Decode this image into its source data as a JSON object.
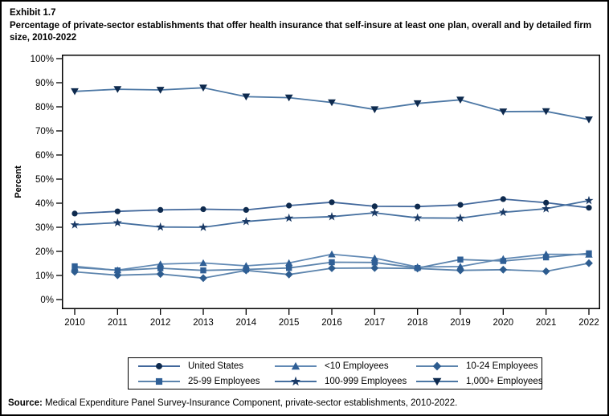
{
  "title": {
    "exhibit": "Exhibit 1.7",
    "text": "Percentage of private-sector establishments that offer health insurance that self-insure at least one plan, overall and by detailed firm size, 2010-2022"
  },
  "chart_data": {
    "type": "line",
    "title": "Percentage of private-sector establishments that offer health insurance that self-insure at least one plan, overall and by detailed firm size, 2010-2022",
    "xlabel": "",
    "ylabel": "Percent",
    "ylim": [
      0,
      100
    ],
    "yticks": [
      0,
      10,
      20,
      30,
      40,
      50,
      60,
      70,
      80,
      90,
      100
    ],
    "ytick_suffix": "%",
    "grid": false,
    "legend_position": "bottom",
    "x": [
      2010,
      2011,
      2012,
      2013,
      2014,
      2015,
      2016,
      2017,
      2018,
      2019,
      2020,
      2021,
      2022
    ],
    "series": [
      {
        "name": "United States",
        "marker": "circle",
        "marker_color": "#0e2a4e",
        "line_color": "#41679b",
        "values": [
          35.7,
          36.6,
          37.2,
          37.5,
          37.2,
          39.0,
          40.4,
          38.7,
          38.6,
          39.3,
          41.7,
          40.2,
          38.1
        ]
      },
      {
        "name": "<10 Employees",
        "marker": "triangle",
        "marker_color": "#2f5f96",
        "line_color": "#6189b4",
        "values": [
          13.3,
          12.2,
          14.7,
          15.2,
          14.0,
          15.2,
          18.8,
          17.2,
          13.5,
          13.7,
          16.9,
          18.8,
          18.7
        ]
      },
      {
        "name": "10-24 Employees",
        "marker": "diamond",
        "marker_color": "#2d5c8f",
        "line_color": "#5c84ad",
        "values": [
          11.5,
          10.1,
          10.6,
          8.9,
          12.1,
          10.4,
          13.0,
          13.1,
          12.9,
          12.1,
          12.4,
          11.7,
          15.1
        ]
      },
      {
        "name": "25-99 Employees",
        "marker": "square",
        "marker_color": "#2f5f96",
        "line_color": "#5c84ad",
        "values": [
          13.8,
          12.1,
          13.0,
          12.1,
          12.5,
          13.1,
          15.5,
          15.4,
          13.1,
          16.6,
          16.0,
          17.5,
          19.2
        ]
      },
      {
        "name": "100-999 Employees",
        "marker": "star",
        "marker_color": "#1a3a66",
        "line_color": "#456f9f",
        "values": [
          31.0,
          31.9,
          30.1,
          30.0,
          32.4,
          33.8,
          34.4,
          36.0,
          33.9,
          33.8,
          36.2,
          37.7,
          41.1
        ]
      },
      {
        "name": "1,000+ Employees",
        "marker": "triangle-down",
        "marker_color": "#0e2a4e",
        "line_color": "#4c77a4",
        "values": [
          86.4,
          87.3,
          87.0,
          87.9,
          84.2,
          83.8,
          81.8,
          78.9,
          81.4,
          82.9,
          78.0,
          78.1,
          74.7
        ]
      }
    ]
  },
  "source": {
    "label": "Source:",
    "text": " Medical Expenditure Panel Survey-Insurance Component, private-sector establishments, 2010-2022."
  }
}
